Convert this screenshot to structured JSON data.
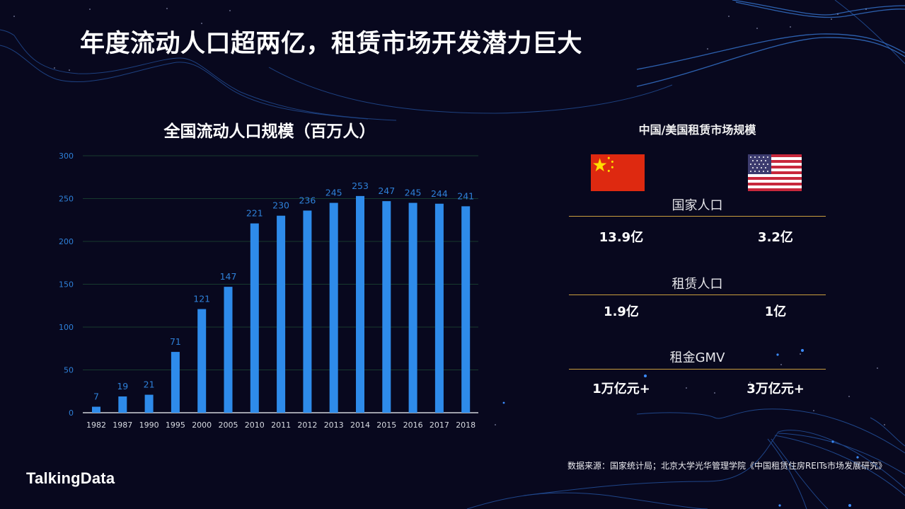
{
  "slide": {
    "title": "年度流动人口超两亿，租赁市场开发潜力巨大",
    "logo": "TalkingData",
    "source": "数据来源：国家统计局；北京大学光华管理学院《中国租赁住房REITs市场发展研究》"
  },
  "chart_data": {
    "type": "bar",
    "title": "全国流动人口规模（百万人）",
    "xlabel": "",
    "ylabel": "",
    "categories": [
      "1982",
      "1987",
      "1990",
      "1995",
      "2000",
      "2005",
      "2010",
      "2011",
      "2012",
      "2013",
      "2014",
      "2015",
      "2016",
      "2017",
      "2018"
    ],
    "values": [
      7,
      19,
      21,
      71,
      121,
      147,
      221,
      230,
      236,
      245,
      253,
      247,
      245,
      244,
      241
    ],
    "ylim": [
      0,
      300
    ],
    "yticks": [
      0,
      50,
      100,
      150,
      200,
      250,
      300
    ],
    "grid": true,
    "data_labels": true,
    "legend": null,
    "bar_color": "#2e8bea"
  },
  "right_panel": {
    "title": "中国/美国租赁市场规模",
    "flags": [
      "china-flag-icon",
      "us-flag-icon"
    ],
    "metrics": [
      {
        "label": "国家人口",
        "china": "13.9亿",
        "usa": "3.2亿"
      },
      {
        "label": "租赁人口",
        "china": "1.9亿",
        "usa": "1亿"
      },
      {
        "label": "租金GMV",
        "china": "1万亿元+",
        "usa": "3万亿元+"
      }
    ]
  },
  "colors": {
    "background": "#08081e",
    "bar": "#2e8bea",
    "data_label": "#2e80d8",
    "divider": "#c99d3e",
    "china_red": "#de2910",
    "china_star": "#ffde00",
    "us_red": "#c8283c",
    "us_blue": "#3c3b6e"
  }
}
